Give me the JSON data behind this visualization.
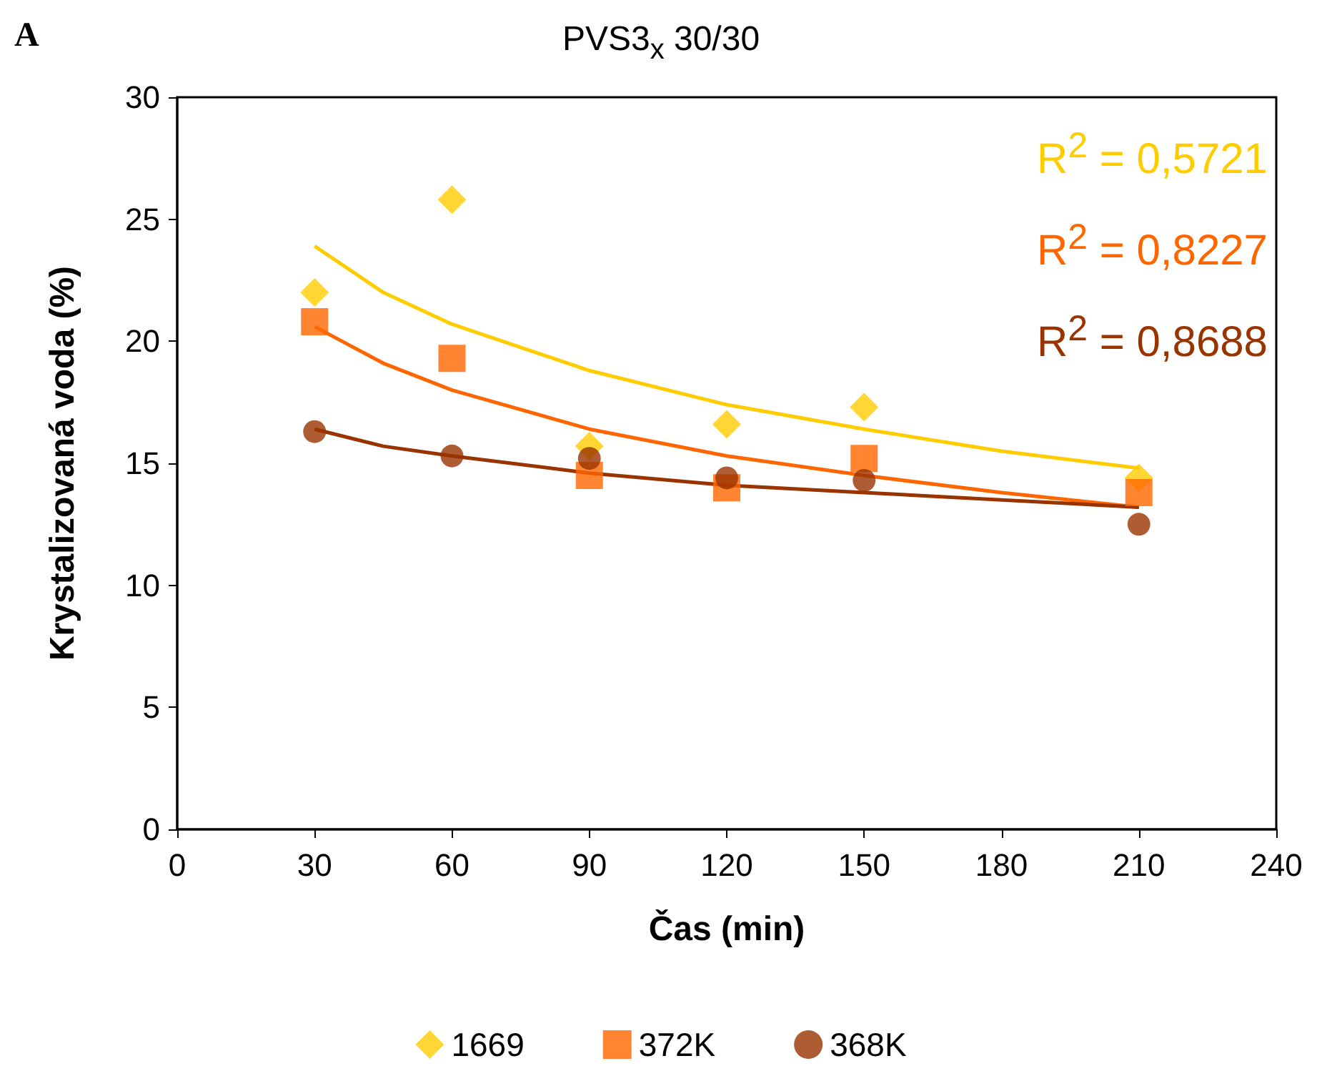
{
  "chart_data": {
    "type": "scatter",
    "title": "PVS3$_{x}$ 30/30",
    "xlabel": "Čas (min)",
    "ylabel": "Krystalizovaná voda (%)",
    "annotations": [
      "A",
      "R$^{2}$ = 0,5721",
      "R$^{2}$ = 0,8227",
      "R$^{2}$ = 0,8688"
    ],
    "x": [
      30,
      60,
      90,
      120,
      150,
      210
    ],
    "series": [
      {
        "name": "1669",
        "color": "#ffcc00",
        "marker": "diamond",
        "values": [
          22.0,
          25.8,
          15.7,
          16.6,
          17.3,
          14.4
        ]
      },
      {
        "name": "372K",
        "color": "#ff6600",
        "marker": "square",
        "values": [
          20.8,
          19.3,
          14.5,
          14.0,
          15.2,
          13.8
        ]
      },
      {
        "name": "368K",
        "color": "#993300",
        "marker": "circle",
        "values": [
          16.3,
          15.3,
          15.2,
          14.4,
          14.3,
          12.5
        ]
      },
      {
        "type": "line",
        "color": "#ffcc00",
        "marker": "none",
        "x": [
          30,
          45,
          60,
          90,
          120,
          150,
          180,
          210
        ],
        "values": [
          23.9,
          22.0,
          20.7,
          18.8,
          17.4,
          16.4,
          15.5,
          14.8
        ]
      },
      {
        "type": "line",
        "color": "#ff6600",
        "marker": "none",
        "x": [
          30,
          45,
          60,
          90,
          120,
          150,
          180,
          210
        ],
        "values": [
          20.6,
          19.1,
          18.0,
          16.4,
          15.3,
          14.5,
          13.8,
          13.2
        ]
      },
      {
        "type": "line",
        "color": "#993300",
        "marker": "none",
        "x": [
          30,
          45,
          60,
          90,
          120,
          150,
          180,
          210
        ],
        "values": [
          16.4,
          15.7,
          15.3,
          14.6,
          14.1,
          13.8,
          13.5,
          13.2
        ]
      }
    ],
    "xlim": [
      0,
      240
    ],
    "xticks": [
      0,
      30,
      60,
      90,
      120,
      150,
      180,
      210,
      240
    ],
    "ylim": [
      0,
      30
    ],
    "yticks": [
      0,
      5,
      10,
      15,
      20,
      25,
      30
    ],
    "grid": false,
    "legend": "bottom"
  }
}
